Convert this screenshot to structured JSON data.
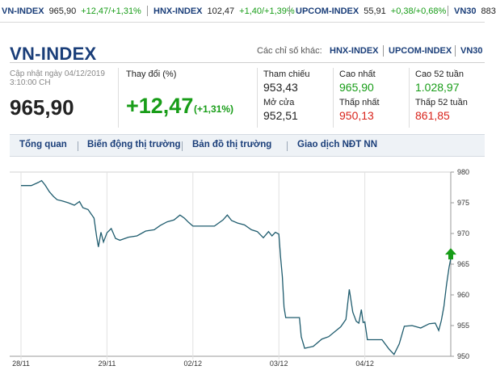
{
  "ticker": [
    {
      "name": "VN-INDEX",
      "value": "965,90",
      "change": "+12,47/+1,31%"
    },
    {
      "name": "HNX-INDEX",
      "value": "102,47",
      "change": "+1,40/+1,39%"
    },
    {
      "name": "UPCOM-INDEX",
      "value": "55,91",
      "change": "+0,38/+0,68%"
    },
    {
      "name": "VN30",
      "value": "883",
      "change": ""
    }
  ],
  "header": {
    "title": "VN-INDEX",
    "other_label": "Các chỉ số khác:",
    "other_links": [
      "HNX-INDEX",
      "UPCOM-INDEX",
      "VN30"
    ]
  },
  "quote": {
    "updated_line1": "Cập nhật ngày 04/12/2019",
    "updated_line2": "3:10:00 CH",
    "price": "965,90",
    "change_label": "Thay đổi (%)",
    "change": "+12,47",
    "change_pct": "(+1,31%)",
    "stats": {
      "ref_label": "Tham chiếu",
      "ref": "953,43",
      "open_label": "Mở cửa",
      "open": "952,51",
      "high_label": "Cao nhất",
      "high": "965,90",
      "low_label": "Thấp nhất",
      "low": "950,13",
      "high52_label": "Cao 52 tuần",
      "high52": "1.028,97",
      "low52_label": "Thấp 52 tuần",
      "low52": "861,85"
    }
  },
  "tabs": [
    "Tổng quan",
    "Biến động thị trường",
    "Bản đồ thị trường",
    "Giao dịch NĐT NN"
  ],
  "colors": {
    "brand": "#1a3e79",
    "up": "#189d18",
    "down": "#d9241c",
    "line": "#1f5c6e"
  },
  "icons": {
    "up_arrow": "up-arrow-icon"
  },
  "chart_data": {
    "type": "line",
    "x_ticks": [
      "28/11",
      "29/11",
      "02/12",
      "03/12",
      "04/12"
    ],
    "y_ticks": [
      950,
      955,
      960,
      965,
      970,
      975,
      980
    ],
    "ylim": [
      950,
      980
    ],
    "grid": "vertical",
    "series": [
      {
        "values": [
          [
            0.0,
            977.8
          ],
          [
            0.12,
            977.8
          ],
          [
            0.2,
            978.3
          ],
          [
            0.24,
            978.6
          ],
          [
            0.28,
            977.9
          ],
          [
            0.33,
            976.8
          ],
          [
            0.38,
            976.0
          ],
          [
            0.42,
            975.5
          ],
          [
            0.48,
            975.3
          ],
          [
            0.55,
            975.0
          ],
          [
            0.62,
            974.6
          ],
          [
            0.68,
            975.2
          ],
          [
            0.72,
            974.2
          ],
          [
            0.78,
            973.9
          ],
          [
            0.85,
            972.5
          ],
          [
            0.88,
            969.5
          ],
          [
            0.9,
            967.8
          ],
          [
            0.93,
            970.2
          ],
          [
            0.96,
            968.6
          ],
          [
            1.0,
            970.1
          ],
          [
            1.05,
            970.8
          ],
          [
            1.1,
            969.2
          ],
          [
            1.15,
            968.9
          ],
          [
            1.25,
            969.4
          ],
          [
            1.35,
            969.6
          ],
          [
            1.45,
            970.4
          ],
          [
            1.55,
            970.6
          ],
          [
            1.62,
            971.3
          ],
          [
            1.7,
            971.9
          ],
          [
            1.78,
            972.2
          ],
          [
            1.85,
            973.0
          ],
          [
            1.9,
            972.5
          ],
          [
            1.95,
            971.8
          ],
          [
            2.0,
            971.2
          ],
          [
            2.1,
            971.2
          ],
          [
            2.25,
            971.2
          ],
          [
            2.35,
            972.2
          ],
          [
            2.4,
            973.0
          ],
          [
            2.45,
            972.1
          ],
          [
            2.52,
            971.7
          ],
          [
            2.6,
            971.4
          ],
          [
            2.68,
            970.6
          ],
          [
            2.75,
            970.3
          ],
          [
            2.82,
            969.3
          ],
          [
            2.88,
            970.3
          ],
          [
            2.92,
            969.6
          ],
          [
            2.96,
            970.2
          ],
          [
            3.0,
            969.9
          ],
          [
            3.02,
            966.2
          ],
          [
            3.04,
            963.0
          ],
          [
            3.06,
            958.0
          ],
          [
            3.08,
            956.3
          ],
          [
            3.15,
            956.3
          ],
          [
            3.24,
            956.3
          ],
          [
            3.26,
            953.2
          ],
          [
            3.3,
            951.3
          ],
          [
            3.4,
            951.6
          ],
          [
            3.5,
            952.8
          ],
          [
            3.58,
            953.2
          ],
          [
            3.66,
            954.1
          ],
          [
            3.72,
            954.8
          ],
          [
            3.78,
            956.0
          ],
          [
            3.82,
            960.9
          ],
          [
            3.86,
            957.2
          ],
          [
            3.9,
            955.7
          ],
          [
            3.93,
            955.4
          ],
          [
            3.96,
            957.6
          ],
          [
            3.98,
            955.5
          ],
          [
            4.0,
            955.6
          ],
          [
            4.03,
            952.7
          ],
          [
            4.1,
            952.7
          ],
          [
            4.2,
            952.7
          ],
          [
            4.28,
            951.2
          ],
          [
            4.34,
            950.3
          ],
          [
            4.4,
            952.0
          ],
          [
            4.46,
            954.9
          ],
          [
            4.55,
            955.0
          ],
          [
            4.65,
            954.6
          ],
          [
            4.75,
            955.3
          ],
          [
            4.82,
            955.4
          ],
          [
            4.86,
            954.2
          ],
          [
            4.89,
            955.8
          ],
          [
            4.92,
            958.1
          ],
          [
            4.95,
            961.6
          ],
          [
            4.98,
            964.5
          ],
          [
            5.0,
            965.9
          ]
        ]
      }
    ]
  }
}
